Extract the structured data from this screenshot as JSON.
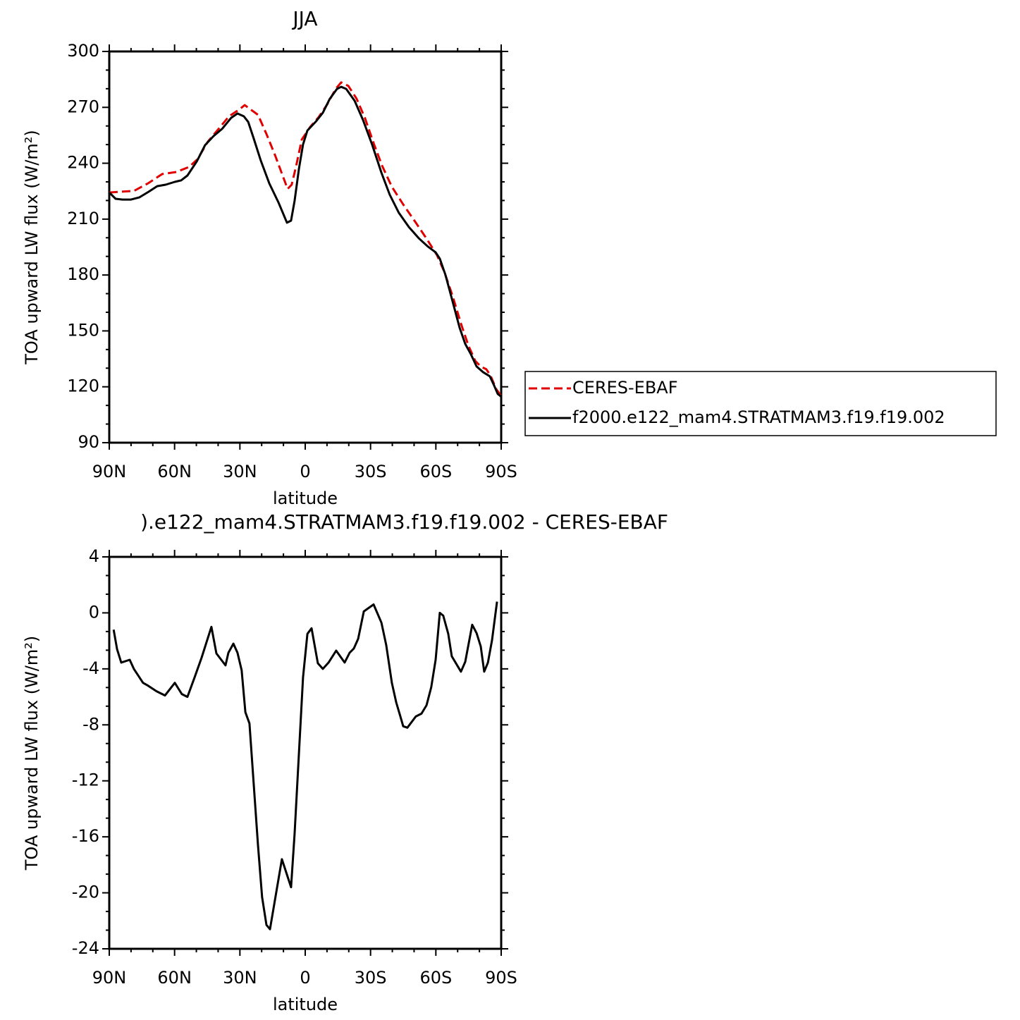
{
  "chart_data": [
    {
      "type": "line",
      "title": "JJA",
      "xlabel": "latitude",
      "ylabel": "TOA upward LW flux (W/m²)",
      "xlim": [
        90,
        -90
      ],
      "xticks": [
        {
          "value": 90,
          "label": "90N"
        },
        {
          "value": 60,
          "label": "60N"
        },
        {
          "value": 30,
          "label": "30N"
        },
        0,
        {
          "value": -30,
          "label": "30S"
        },
        {
          "value": -60,
          "label": "60S"
        },
        {
          "value": -90,
          "label": "90S"
        }
      ],
      "ylim": [
        90,
        300
      ],
      "yticks": [
        90,
        120,
        150,
        180,
        210,
        240,
        270,
        300
      ],
      "legend": "right",
      "series": [
        {
          "name": "CERES-EBAF",
          "color": "#e00000",
          "dash": true,
          "x": [
            90,
            85.1,
            78.7,
            72.2,
            65.7,
            59.2,
            53.4,
            49.5,
            44.7,
            39.8,
            35.0,
            30.1,
            27.8,
            21.7,
            17.8,
            13.9,
            8.1,
            6.2,
            4.2,
            1.6,
            -2.3,
            -6.2,
            -10.1,
            -14.0,
            -16.5,
            -19.8,
            -23.6,
            -27.5,
            -31.4,
            -35.3,
            -39.8,
            -45.0,
            -50.8,
            -56.0,
            -60.5,
            -63.8,
            -67.7,
            -71.6,
            -74.9,
            -78.1,
            -80.6,
            -83.2,
            -85.1,
            -87.7,
            -90
          ],
          "values": [
            224.3,
            224.7,
            225.1,
            229.2,
            234.2,
            235.3,
            238.0,
            242.1,
            251.6,
            258.4,
            265.2,
            269.0,
            271.2,
            266.0,
            255.7,
            244.4,
            226.2,
            228.5,
            238.3,
            252.7,
            259.5,
            264.8,
            271.6,
            279.9,
            283.4,
            281.5,
            274.6,
            264.1,
            250.8,
            238.7,
            227.4,
            217.9,
            208.1,
            199.0,
            190.7,
            181.9,
            168.7,
            153.6,
            142.2,
            133.9,
            130.9,
            129.4,
            126.0,
            118.8,
            115.0
          ]
        },
        {
          "name": "f2000.e122_mam4.STRATMAM3.f19.f19.002",
          "color": "#000000",
          "dash": false,
          "x": [
            90,
            87.1,
            83.9,
            80,
            76.1,
            71.9,
            68,
            64.1,
            59.9,
            57,
            54.1,
            49.8,
            46,
            42.1,
            38.2,
            34,
            31.1,
            28.2,
            26.2,
            23.6,
            20.4,
            16.5,
            12.3,
            8.4,
            6.5,
            4.9,
            2.9,
            1.0,
            -1,
            -5,
            -8.1,
            -11.3,
            -14.6,
            -16.5,
            -18.8,
            -22.7,
            -26.5,
            -30.7,
            -35,
            -38.8,
            -43,
            -47.6,
            -52.1,
            -56.3,
            -59.9,
            -61.8,
            -64.4,
            -67.7,
            -70.9,
            -73.5,
            -76.1,
            -78.7,
            -81.6,
            -84.8,
            -86.6,
            -88.4,
            -90
          ],
          "values": [
            224.3,
            220.9,
            220.5,
            220.5,
            221.7,
            224.7,
            227.7,
            228.5,
            230.0,
            230.8,
            233.4,
            241.0,
            249.7,
            254.6,
            258.4,
            264.4,
            266.7,
            265.2,
            262.2,
            253.1,
            241.4,
            229.2,
            219.0,
            208.1,
            209.2,
            219.8,
            236.8,
            250.1,
            257.6,
            262.5,
            267.1,
            274.6,
            279.9,
            281.0,
            279.9,
            273.5,
            263.3,
            250.1,
            234.9,
            223.2,
            213.4,
            205.8,
            199.8,
            195.3,
            192.2,
            188.8,
            180.1,
            165.8,
            151.7,
            143.0,
            137.4,
            130.9,
            127.9,
            125.6,
            121.1,
            116.2,
            114.7
          ]
        }
      ]
    },
    {
      "type": "line",
      "title": ").e122_mam4.STRATMAM3.f19.f19.002 - CERES-EBAF",
      "xlabel": "latitude",
      "ylabel": "TOA upward LW flux (W/m²)",
      "xlim": [
        90,
        -90
      ],
      "xticks": [
        {
          "value": 90,
          "label": "90N"
        },
        {
          "value": 60,
          "label": "60N"
        },
        {
          "value": 30,
          "label": "30N"
        },
        0,
        {
          "value": -30,
          "label": "30S"
        },
        {
          "value": -60,
          "label": "60S"
        },
        {
          "value": -90,
          "label": "90S"
        }
      ],
      "ylim": [
        -24,
        4
      ],
      "yticks": [
        -24,
        -20,
        -16,
        -12,
        -8,
        -4,
        0,
        4
      ],
      "series": [
        {
          "color": "#000000",
          "x": [
            88,
            86.4,
            84.5,
            80.6,
            78.7,
            74.5,
            72.2,
            68.3,
            64.4,
            59.9,
            56.7,
            54.1,
            50.8,
            47.6,
            43.1,
            40.8,
            36.6,
            35.3,
            33.0,
            31.1,
            29.2,
            27.5,
            25.6,
            21.7,
            19.8,
            17.8,
            16.2,
            10.7,
            6.5,
            4.9,
            1.0,
            -1.0,
            -2.9,
            -5.8,
            -8.1,
            -10.7,
            -14.2,
            -18.1,
            -20.4,
            -22.3,
            -24.3,
            -26.9,
            -31.4,
            -35.0,
            -37.2,
            -39.8,
            -41.8,
            -43.7,
            -45.0,
            -46.9,
            -50.8,
            -53.4,
            -55.7,
            -57.9,
            -59.9,
            -61.8,
            -63.4,
            -65.7,
            -67.3,
            -71.5,
            -73.5,
            -76.7,
            -78.7,
            -80.6,
            -82.2,
            -83.9,
            -85.8,
            -88.1
          ],
          "values": [
            -1.2,
            -2.6,
            -3.55,
            -3.35,
            -4.0,
            -5.0,
            -5.2,
            -5.6,
            -5.9,
            -5.0,
            -5.8,
            -6.0,
            -4.6,
            -3.2,
            -1.0,
            -2.9,
            -3.75,
            -2.85,
            -2.2,
            -2.85,
            -4.1,
            -7.1,
            -7.9,
            -16.6,
            -20.3,
            -22.3,
            -22.6,
            -17.6,
            -19.6,
            -15.8,
            -4.6,
            -1.5,
            -1.1,
            -3.6,
            -4.0,
            -3.55,
            -2.7,
            -3.55,
            -2.85,
            -2.55,
            -1.85,
            0.1,
            0.6,
            -0.7,
            -2.3,
            -5.0,
            -6.4,
            -7.4,
            -8.1,
            -8.2,
            -7.4,
            -7.2,
            -6.6,
            -5.3,
            -3.35,
            0.0,
            -0.2,
            -1.5,
            -3.1,
            -4.2,
            -3.5,
            -0.85,
            -1.45,
            -2.4,
            -4.2,
            -3.55,
            -1.95,
            0.8
          ]
        }
      ]
    }
  ]
}
